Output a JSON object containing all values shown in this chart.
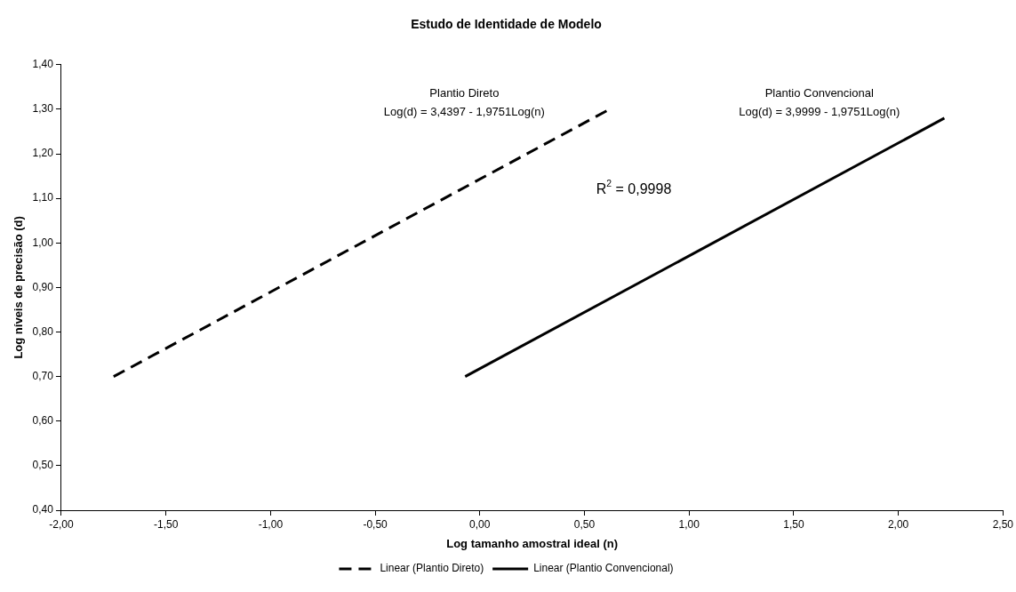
{
  "chart_data": {
    "type": "line",
    "title": "Estudo de Identidade de Modelo",
    "xlabel": "Log tamanho amostral ideal (n)",
    "ylabel": "Log níveis de precisão (d)",
    "series": [
      {
        "name": "Linear (Plantio Direto)",
        "color": "#000000",
        "line_style": "dashed",
        "x": [
          -1.75,
          0.62
        ],
        "values": [
          0.7,
          1.3
        ]
      },
      {
        "name": "Linear (Plantio Convencional)",
        "color": "#000000",
        "line_style": "solid",
        "x": [
          -0.07,
          2.22
        ],
        "values": [
          0.7,
          1.28
        ]
      }
    ],
    "xlim": [
      -2,
      2.5
    ],
    "xticks": [
      {
        "value": -2,
        "label": "-2,00"
      },
      {
        "value": -1.5,
        "label": "-1,50"
      },
      {
        "value": -1,
        "label": "-1,00"
      },
      {
        "value": -0.5,
        "label": "-0,50"
      },
      {
        "value": 0,
        "label": "0,00"
      },
      {
        "value": 0.5,
        "label": "0,50"
      },
      {
        "value": 1,
        "label": "1,00"
      },
      {
        "value": 1.5,
        "label": "1,50"
      },
      {
        "value": 2,
        "label": "2,00"
      },
      {
        "value": 2.5,
        "label": "2,50"
      }
    ],
    "ylim": [
      0.4,
      1.4
    ],
    "yticks": [
      {
        "value": 0.4,
        "label": "0,40"
      },
      {
        "value": 0.5,
        "label": "0,50"
      },
      {
        "value": 0.6,
        "label": "0,60"
      },
      {
        "value": 0.7,
        "label": "0,70"
      },
      {
        "value": 0.8,
        "label": "0,80"
      },
      {
        "value": 0.9,
        "label": "0,90"
      },
      {
        "value": 1.0,
        "label": "1,00"
      },
      {
        "value": 1.1,
        "label": "1,10"
      },
      {
        "value": 1.2,
        "label": "1,20"
      },
      {
        "value": 1.3,
        "label": "1,30"
      },
      {
        "value": 1.4,
        "label": "1,40"
      }
    ],
    "annotations": [
      "Plantio Direto",
      "Log(d) = 3,4397 - 1,9751Log(n)",
      "Plantio Convencional",
      "Log(d) = 3,9999 - 1,9751Log(n)",
      "R$^{2}$ = 0,9998"
    ],
    "grid": false,
    "legend": "bottom",
    "marker": "none"
  }
}
